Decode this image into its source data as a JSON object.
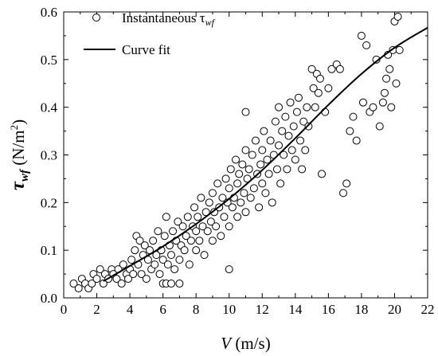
{
  "chart_data": {
    "type": "scatter",
    "title": "",
    "xlabel": {
      "symbol": "V",
      "unit": " (m/s)"
    },
    "ylabel": {
      "symbol": "τ",
      "subscript": "wf",
      "unit": "  (N/m",
      "sup": "2",
      "close": ")"
    },
    "xlim": [
      0,
      22
    ],
    "ylim": [
      0.0,
      0.6
    ],
    "xticks": [
      0,
      2,
      4,
      6,
      8,
      10,
      12,
      14,
      16,
      18,
      20,
      22
    ],
    "yticks": [
      "0.0",
      "0.1",
      "0.2",
      "0.3",
      "0.4",
      "0.5",
      "0.6"
    ],
    "grid": false,
    "legend_position": "top-left",
    "series": [
      {
        "name": "Instantaneous τ",
        "name_sub": "wf",
        "kind": "scatter",
        "marker": "open-circle",
        "points": [
          [
            0.6,
            0.03
          ],
          [
            0.9,
            0.02
          ],
          [
            1.1,
            0.04
          ],
          [
            1.3,
            0.03
          ],
          [
            1.5,
            0.02
          ],
          [
            1.7,
            0.03
          ],
          [
            1.8,
            0.05
          ],
          [
            2.0,
            0.04
          ],
          [
            2.2,
            0.06
          ],
          [
            2.4,
            0.03
          ],
          [
            2.5,
            0.05
          ],
          [
            2.7,
            0.04
          ],
          [
            2.9,
            0.06
          ],
          [
            3.0,
            0.05
          ],
          [
            3.2,
            0.04
          ],
          [
            3.3,
            0.06
          ],
          [
            3.5,
            0.03
          ],
          [
            3.6,
            0.07
          ],
          [
            3.8,
            0.05
          ],
          [
            3.9,
            0.04
          ],
          [
            4.0,
            0.06
          ],
          [
            4.1,
            0.08
          ],
          [
            4.2,
            0.05
          ],
          [
            4.3,
            0.1
          ],
          [
            4.4,
            0.13
          ],
          [
            4.5,
            0.07
          ],
          [
            4.6,
            0.12
          ],
          [
            4.7,
            0.05
          ],
          [
            4.8,
            0.09
          ],
          [
            4.9,
            0.11
          ],
          [
            5.0,
            0.04
          ],
          [
            5.1,
            0.08
          ],
          [
            5.2,
            0.1
          ],
          [
            5.3,
            0.06
          ],
          [
            5.4,
            0.12
          ],
          [
            5.5,
            0.07
          ],
          [
            5.6,
            0.09
          ],
          [
            5.7,
            0.14
          ],
          [
            5.8,
            0.05
          ],
          [
            5.9,
            0.1
          ],
          [
            6.0,
            0.03
          ],
          [
            6.0,
            0.08
          ],
          [
            6.1,
            0.13
          ],
          [
            6.2,
            0.17
          ],
          [
            6.2,
            0.03
          ],
          [
            6.3,
            0.07
          ],
          [
            6.4,
            0.11
          ],
          [
            6.5,
            0.09
          ],
          [
            6.5,
            0.03
          ],
          [
            6.6,
            0.14
          ],
          [
            6.7,
            0.06
          ],
          [
            6.8,
            0.12
          ],
          [
            6.9,
            0.16
          ],
          [
            7.0,
            0.08
          ],
          [
            7.0,
            0.03
          ],
          [
            7.1,
            0.11
          ],
          [
            7.2,
            0.15
          ],
          [
            7.3,
            0.1
          ],
          [
            7.4,
            0.13
          ],
          [
            7.5,
            0.17
          ],
          [
            7.6,
            0.07
          ],
          [
            7.7,
            0.12
          ],
          [
            7.8,
            0.15
          ],
          [
            7.9,
            0.19
          ],
          [
            8.0,
            0.1
          ],
          [
            8.0,
            0.14
          ],
          [
            8.1,
            0.17
          ],
          [
            8.2,
            0.12
          ],
          [
            8.3,
            0.21
          ],
          [
            8.4,
            0.15
          ],
          [
            8.5,
            0.09
          ],
          [
            8.6,
            0.18
          ],
          [
            8.7,
            0.14
          ],
          [
            8.8,
            0.2
          ],
          [
            8.9,
            0.16
          ],
          [
            9.0,
            0.12
          ],
          [
            9.0,
            0.22
          ],
          [
            9.1,
            0.18
          ],
          [
            9.2,
            0.15
          ],
          [
            9.3,
            0.24
          ],
          [
            9.4,
            0.19
          ],
          [
            9.5,
            0.13
          ],
          [
            9.6,
            0.21
          ],
          [
            9.7,
            0.17
          ],
          [
            9.8,
            0.25
          ],
          [
            9.9,
            0.2
          ],
          [
            10.0,
            0.06
          ],
          [
            10.0,
            0.15
          ],
          [
            10.0,
            0.23
          ],
          [
            10.1,
            0.27
          ],
          [
            10.2,
            0.19
          ],
          [
            10.3,
            0.21
          ],
          [
            10.4,
            0.29
          ],
          [
            10.5,
            0.17
          ],
          [
            10.5,
            0.24
          ],
          [
            10.6,
            0.26
          ],
          [
            10.7,
            0.2
          ],
          [
            10.8,
            0.28
          ],
          [
            10.9,
            0.22
          ],
          [
            11.0,
            0.39
          ],
          [
            11.0,
            0.31
          ],
          [
            11.0,
            0.18
          ],
          [
            11.1,
            0.25
          ],
          [
            11.2,
            0.27
          ],
          [
            11.3,
            0.21
          ],
          [
            11.4,
            0.3
          ],
          [
            11.5,
            0.23
          ],
          [
            11.6,
            0.33
          ],
          [
            11.7,
            0.26
          ],
          [
            11.8,
            0.19
          ],
          [
            11.9,
            0.28
          ],
          [
            12.0,
            0.24
          ],
          [
            12.0,
            0.31
          ],
          [
            12.1,
            0.35
          ],
          [
            12.2,
            0.22
          ],
          [
            12.3,
            0.29
          ],
          [
            12.4,
            0.26
          ],
          [
            12.5,
            0.33
          ],
          [
            12.6,
            0.2
          ],
          [
            12.7,
            0.3
          ],
          [
            12.8,
            0.37
          ],
          [
            12.9,
            0.27
          ],
          [
            13.0,
            0.4
          ],
          [
            13.0,
            0.32
          ],
          [
            13.1,
            0.24
          ],
          [
            13.2,
            0.35
          ],
          [
            13.3,
            0.3
          ],
          [
            13.4,
            0.38
          ],
          [
            13.5,
            0.27
          ],
          [
            13.6,
            0.34
          ],
          [
            13.7,
            0.41
          ],
          [
            13.8,
            0.31
          ],
          [
            13.9,
            0.36
          ],
          [
            14.0,
            0.29
          ],
          [
            14.1,
            0.39
          ],
          [
            14.2,
            0.42
          ],
          [
            14.3,
            0.33
          ],
          [
            14.4,
            0.27
          ],
          [
            14.5,
            0.37
          ],
          [
            14.6,
            0.31
          ],
          [
            14.7,
            0.4
          ],
          [
            14.8,
            0.36
          ],
          [
            15.0,
            0.48
          ],
          [
            15.1,
            0.44
          ],
          [
            15.2,
            0.4
          ],
          [
            15.3,
            0.47
          ],
          [
            15.4,
            0.43
          ],
          [
            15.5,
            0.46
          ],
          [
            15.6,
            0.26
          ],
          [
            15.8,
            0.39
          ],
          [
            16.0,
            0.44
          ],
          [
            16.2,
            0.48
          ],
          [
            16.5,
            0.49
          ],
          [
            16.7,
            0.48
          ],
          [
            16.9,
            0.22
          ],
          [
            17.1,
            0.24
          ],
          [
            17.3,
            0.35
          ],
          [
            17.5,
            0.38
          ],
          [
            17.7,
            0.33
          ],
          [
            18.0,
            0.55
          ],
          [
            18.1,
            0.41
          ],
          [
            18.3,
            0.53
          ],
          [
            18.5,
            0.39
          ],
          [
            18.7,
            0.4
          ],
          [
            18.9,
            0.5
          ],
          [
            19.1,
            0.36
          ],
          [
            19.3,
            0.41
          ],
          [
            19.4,
            0.43
          ],
          [
            19.5,
            0.46
          ],
          [
            19.6,
            0.51
          ],
          [
            19.7,
            0.48
          ],
          [
            19.8,
            0.4
          ],
          [
            19.9,
            0.52
          ],
          [
            20.0,
            0.58
          ],
          [
            20.1,
            0.45
          ],
          [
            20.2,
            0.59
          ],
          [
            20.3,
            0.52
          ]
        ]
      },
      {
        "name": "Curve fit",
        "kind": "line",
        "points": [
          [
            2.4,
            0.035
          ],
          [
            4,
            0.067
          ],
          [
            6,
            0.108
          ],
          [
            8,
            0.155
          ],
          [
            10,
            0.208
          ],
          [
            12,
            0.268
          ],
          [
            14,
            0.335
          ],
          [
            16,
            0.405
          ],
          [
            18,
            0.47
          ],
          [
            20,
            0.525
          ],
          [
            22,
            0.567
          ]
        ]
      }
    ]
  }
}
